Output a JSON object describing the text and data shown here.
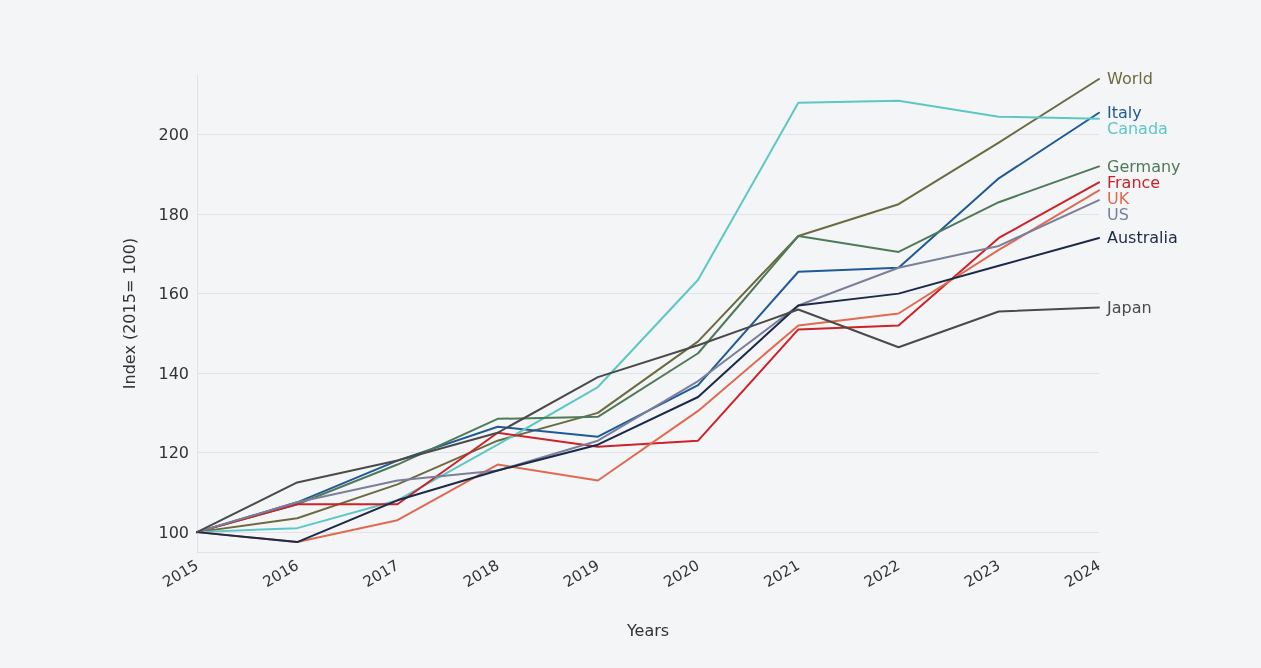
{
  "chart_data": {
    "type": "line",
    "xlabel": "Years",
    "ylabel": "Index (2015= 100)",
    "categories": [
      "2015",
      "2016",
      "2017",
      "2018",
      "2019",
      "2020",
      "2021",
      "2022",
      "2023",
      "2024"
    ],
    "ylim": [
      95,
      215
    ],
    "yticks": [
      100,
      120,
      140,
      160,
      180,
      200
    ],
    "grid": "y",
    "legend": false,
    "marker": "none",
    "line_style": "solid",
    "series": [
      {
        "name": "World",
        "color": "#6b6b3f",
        "values": [
          100,
          103.5,
          112,
          123,
          130,
          148,
          174.5,
          182.5,
          198,
          214
        ]
      },
      {
        "name": "Italy",
        "color": "#1f5a96",
        "values": [
          100,
          107.5,
          118,
          126.5,
          124,
          137,
          165.5,
          166.5,
          189,
          205.5
        ]
      },
      {
        "name": "Canada",
        "color": "#5cc7c4",
        "values": [
          100,
          101,
          108,
          122,
          136.5,
          163.5,
          208,
          208.5,
          204.5,
          204
        ]
      },
      {
        "name": "Germany",
        "color": "#4f7a5a",
        "values": [
          100,
          107,
          117,
          128.5,
          129,
          145,
          174.5,
          170.5,
          183,
          192
        ]
      },
      {
        "name": "France",
        "color": "#cc2229",
        "values": [
          100,
          107,
          107,
          125,
          121.5,
          123,
          151,
          152,
          174,
          188
        ]
      },
      {
        "name": "UK",
        "color": "#e06a50",
        "values": [
          100,
          97.5,
          103,
          117,
          113,
          130.5,
          152,
          155,
          171,
          186
        ]
      },
      {
        "name": "US",
        "color": "#7a7f9b",
        "values": [
          100,
          107.5,
          113,
          115.5,
          123,
          138,
          157,
          166.5,
          172,
          183.5
        ]
      },
      {
        "name": "Australia",
        "color": "#1c2a4a",
        "values": [
          100,
          97.5,
          108,
          115.5,
          122,
          134,
          157,
          160,
          167,
          174
        ]
      },
      {
        "name": "Japan",
        "color": "#4a4a4a",
        "values": [
          100,
          112.5,
          118,
          125,
          139,
          147,
          156,
          146.5,
          155.5,
          156.5
        ]
      }
    ]
  }
}
